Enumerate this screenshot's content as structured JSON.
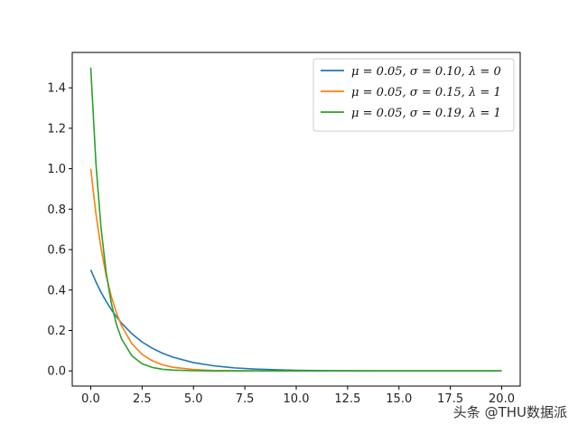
{
  "chart_data": {
    "type": "line",
    "title": "",
    "xlabel": "",
    "ylabel": "",
    "xlim": [
      -0.9,
      20.9
    ],
    "ylim": [
      -0.075,
      1.575
    ],
    "x_ticks": [
      0.0,
      2.5,
      5.0,
      7.5,
      10.0,
      12.5,
      15.0,
      17.5,
      20.0
    ],
    "x_tick_labels": [
      "0.0",
      "2.5",
      "5.0",
      "7.5",
      "10.0",
      "12.5",
      "15.0",
      "17.5",
      "20.0"
    ],
    "y_ticks": [
      0.0,
      0.2,
      0.4,
      0.6,
      0.8,
      1.0,
      1.2,
      1.4
    ],
    "y_tick_labels": [
      "0.0",
      "0.2",
      "0.4",
      "0.6",
      "0.8",
      "1.0",
      "1.2",
      "1.4"
    ],
    "grid": false,
    "legend_position": "top-right",
    "x": [
      0,
      0.25,
      0.5,
      0.75,
      1,
      1.25,
      1.5,
      2,
      2.5,
      3,
      3.5,
      4,
      5,
      6,
      7,
      8,
      9,
      10,
      12,
      14,
      16,
      18,
      20
    ],
    "series": [
      {
        "name": "μ = 0.05,  σ = 0.10,  λ = 0",
        "color": "#1f77b4",
        "values": [
          0.5,
          0.441,
          0.389,
          0.344,
          0.303,
          0.268,
          0.236,
          0.184,
          0.143,
          0.112,
          0.087,
          0.068,
          0.041,
          0.025,
          0.015,
          0.009,
          0.006,
          0.003,
          0.001,
          0.0005,
          0.0002,
          0.0001,
          0.0
        ]
      },
      {
        "name": "μ = 0.05,  σ = 0.15,  λ = 1",
        "color": "#ff7f0e",
        "values": [
          1.0,
          0.779,
          0.607,
          0.472,
          0.368,
          0.287,
          0.223,
          0.135,
          0.082,
          0.05,
          0.03,
          0.018,
          0.007,
          0.002,
          0.001,
          0.0003,
          0.0001,
          0.0,
          0.0,
          0.0,
          0.0,
          0.0,
          0.0
        ]
      },
      {
        "name": "μ = 0.05,  σ = 0.19,  λ = 1",
        "color": "#2ca02c",
        "values": [
          1.5,
          1.03,
          0.708,
          0.487,
          0.335,
          0.23,
          0.158,
          0.075,
          0.035,
          0.017,
          0.008,
          0.004,
          0.001,
          0.0,
          0.0,
          0.0,
          0.0,
          0.0,
          0.0,
          0.0,
          0.0,
          0.0,
          0.0
        ]
      }
    ]
  },
  "watermark": "头条 @THU数据派"
}
